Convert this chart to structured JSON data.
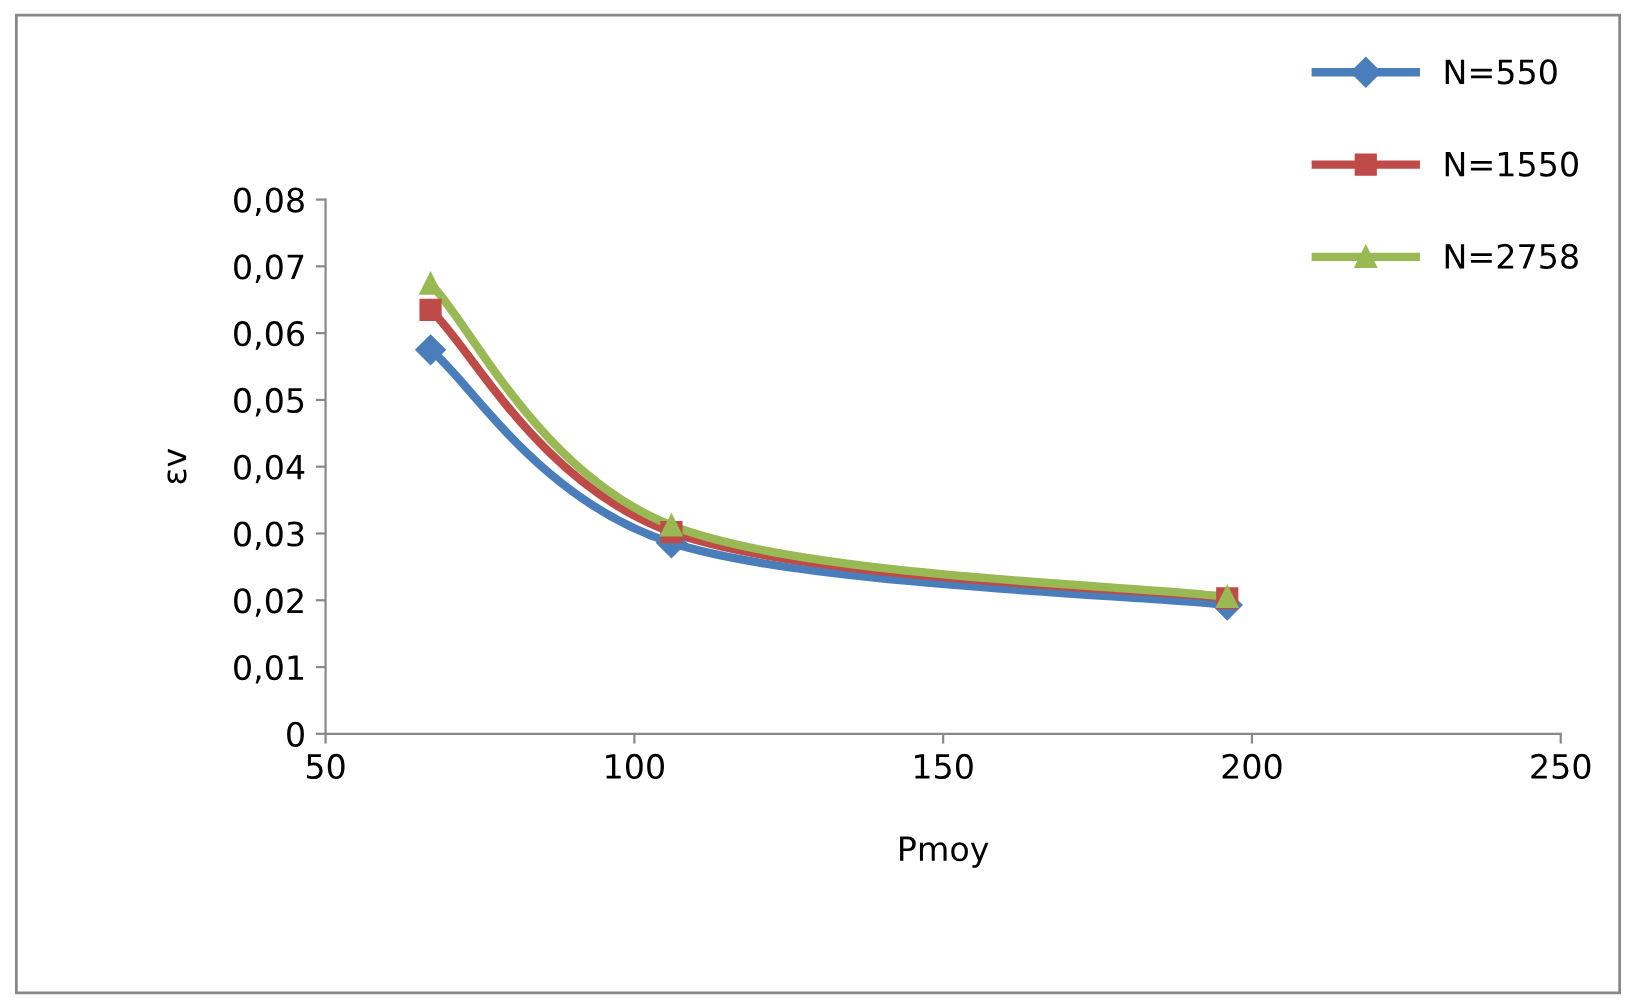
{
  "chart_data": {
    "type": "line",
    "xlabel": "Pmoy",
    "ylabel": "εv",
    "series": [
      {
        "name": "N=550",
        "color": "#4a7ebb",
        "marker": "diamond",
        "x": [
          67,
          106,
          196
        ],
        "values": [
          0.0575,
          0.0286,
          0.0193
        ]
      },
      {
        "name": "N=1550",
        "color": "#be4b48",
        "marker": "square",
        "x": [
          67,
          106,
          196
        ],
        "values": [
          0.0635,
          0.0302,
          0.0203
        ]
      },
      {
        "name": "N=2758",
        "color": "#98b954",
        "marker": "triangle",
        "x": [
          67,
          106,
          196
        ],
        "values": [
          0.0674,
          0.0312,
          0.0205
        ]
      }
    ],
    "xlim": [
      50,
      250
    ],
    "xticks": [
      50,
      100,
      150,
      200,
      250
    ],
    "ylim": [
      0,
      0.08
    ],
    "yticks": [
      {
        "value": 0,
        "label": "0"
      },
      {
        "value": 0.01,
        "label": "0,01"
      },
      {
        "value": 0.02,
        "label": "0,02"
      },
      {
        "value": 0.03,
        "label": "0,03"
      },
      {
        "value": 0.04,
        "label": "0,04"
      },
      {
        "value": 0.05,
        "label": "0,05"
      },
      {
        "value": 0.06,
        "label": "0,06"
      },
      {
        "value": 0.07,
        "label": "0,07"
      },
      {
        "value": 0.08,
        "label": "0,08"
      }
    ],
    "grid": false,
    "legend": "top right",
    "line_style": "solid"
  }
}
